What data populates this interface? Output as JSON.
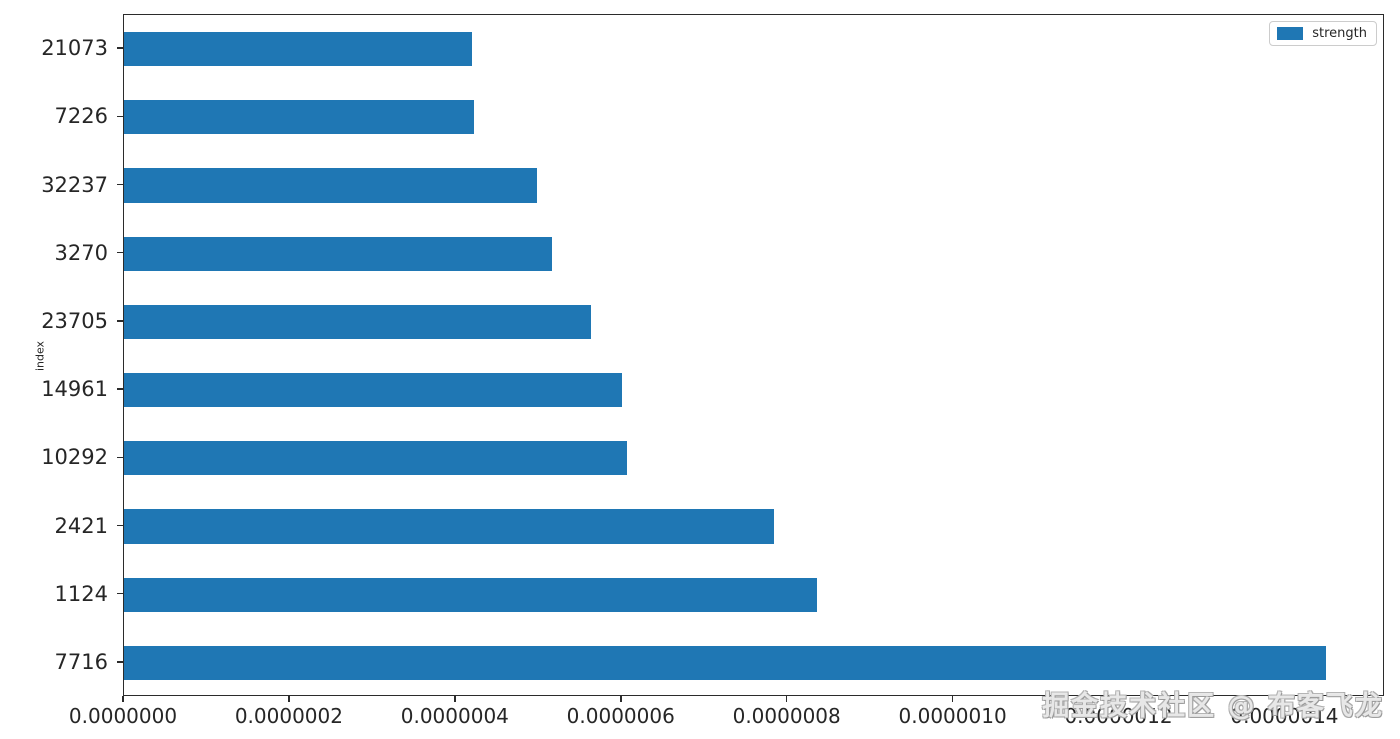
{
  "chart_data": {
    "type": "bar",
    "orientation": "horizontal",
    "title": "",
    "xlabel": "",
    "ylabel": "index",
    "categories": [
      "21073",
      "7226",
      "32237",
      "3270",
      "23705",
      "14961",
      "10292",
      "2421",
      "1124",
      "7716"
    ],
    "series": [
      {
        "name": "strength",
        "values": [
          4.2e-07,
          4.22e-07,
          4.98e-07,
          5.16e-07,
          5.63e-07,
          6e-07,
          6.06e-07,
          7.84e-07,
          8.35e-07,
          1.449e-06
        ]
      }
    ],
    "xlim": [
      0,
      1.52e-06
    ],
    "xticks": {
      "values": [
        0,
        2e-07,
        4e-07,
        6e-07,
        8e-07,
        1e-06,
        1.2e-06,
        1.4e-06
      ],
      "labels": [
        "0.0000000",
        "0.0000002",
        "0.0000004",
        "0.0000006",
        "0.0000008",
        "0.0000010",
        "0.0000012",
        "0.0000014"
      ]
    },
    "grid": false,
    "legend": {
      "label": "strength",
      "position": "upper right"
    },
    "colors": {
      "bar": "#1f77b4",
      "axis": "#2b2b2b",
      "tick_label": "#262626"
    }
  },
  "watermark": {
    "text": "掘金技术社区 @ 布客飞龙"
  }
}
